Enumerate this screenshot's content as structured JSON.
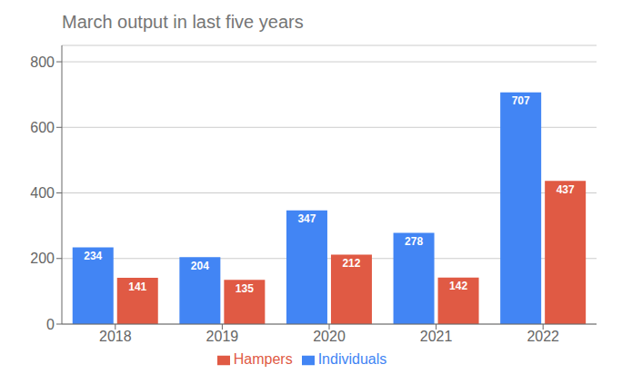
{
  "chart_data": {
    "type": "bar",
    "title": "March output in last five years",
    "categories": [
      "2018",
      "2019",
      "2020",
      "2021",
      "2022"
    ],
    "series": [
      {
        "name": "Individuals",
        "color": "#4285F4",
        "values": [
          234,
          204,
          347,
          278,
          707
        ]
      },
      {
        "name": "Hampers",
        "color": "#E05A44",
        "values": [
          141,
          135,
          212,
          142,
          437
        ]
      }
    ],
    "ylim": [
      0,
      850
    ],
    "yticks": [
      0,
      200,
      400,
      600,
      800
    ],
    "grid": true,
    "legend": "bottom",
    "data_labels": true
  }
}
